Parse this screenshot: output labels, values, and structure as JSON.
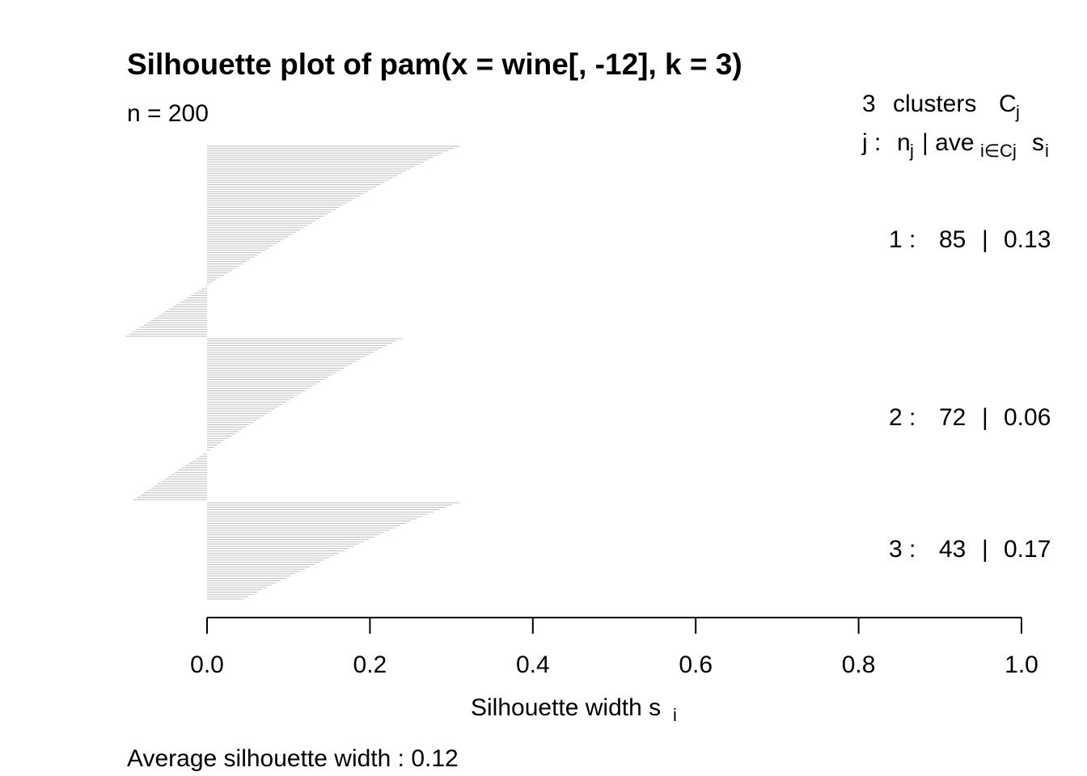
{
  "title": "Silhouette plot of pam(x = wine[, -12], k = 3)",
  "n_label": "n = 200",
  "legend": {
    "header_count": "3",
    "header_word": "clusters",
    "header_c": "C",
    "header_c_sub": "j",
    "row2_j": "j :",
    "row2_n": "n",
    "row2_n_sub": "j",
    "row2_sep": "| ave",
    "row2_ave_sub": "i∈Cj",
    "row2_s": "s",
    "row2_s_sub": "i"
  },
  "clusters": [
    {
      "id": "1 :",
      "n": "85",
      "sep": "|",
      "ave": "0.13"
    },
    {
      "id": "2 :",
      "n": "72",
      "sep": "|",
      "ave": "0.06"
    },
    {
      "id": "3 :",
      "n": "43",
      "sep": "|",
      "ave": "0.17"
    }
  ],
  "xaxis": {
    "label_main": "Silhouette width s",
    "label_sub": "i",
    "ticks": [
      "0.0",
      "0.2",
      "0.4",
      "0.6",
      "0.8",
      "1.0"
    ]
  },
  "footer": "Average silhouette width :  0.12",
  "colors": {
    "bars": "#bebebe",
    "axis": "#000000"
  },
  "chart_data": {
    "type": "bar",
    "orientation": "horizontal",
    "title": "Silhouette plot of pam(x = wine[, -12], k = 3)",
    "xlabel": "Silhouette width si",
    "xlim": [
      0,
      1
    ],
    "n": 200,
    "average_silhouette_width": 0.12,
    "series": [
      {
        "name": "1",
        "count": 85,
        "average": 0.13,
        "max": 0.31,
        "min": -0.1
      },
      {
        "name": "2",
        "count": 72,
        "average": 0.06,
        "max": 0.24,
        "min": -0.09
      },
      {
        "name": "3",
        "count": 43,
        "average": 0.17,
        "max": 0.31,
        "min": 0.045
      }
    ]
  }
}
